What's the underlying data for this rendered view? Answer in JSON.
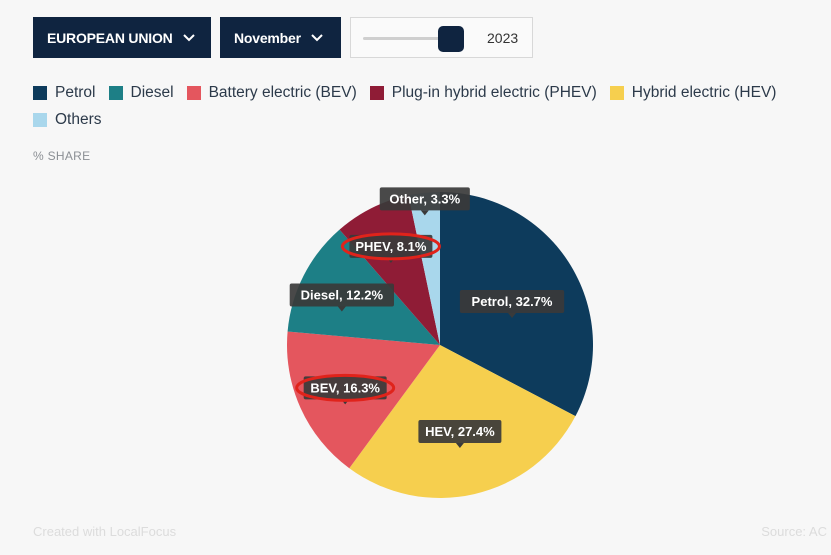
{
  "controls": {
    "region": "EUROPEAN UNION",
    "month": "November",
    "year": "2023",
    "year_fraction": 0.88
  },
  "legend": [
    {
      "label": "Petrol",
      "color": "#0d3b5c"
    },
    {
      "label": "Diesel",
      "color": "#1d7f86"
    },
    {
      "label": "Battery electric (BEV)",
      "color": "#e4565e"
    },
    {
      "label": "Plug-in hybrid electric (PHEV)",
      "color": "#8f1c36"
    },
    {
      "label": "Hybrid electric (HEV)",
      "color": "#f6cf4e"
    },
    {
      "label": "Others",
      "color": "#a9d7ec"
    }
  ],
  "share_label": "% SHARE",
  "chart_data": {
    "type": "pie",
    "slices": [
      {
        "name": "Petrol",
        "value": 32.7,
        "label": "Petrol, 32.7%",
        "color": "#0d3b5c"
      },
      {
        "name": "HEV",
        "value": 27.4,
        "label": "HEV, 27.4%",
        "color": "#f6cf4e"
      },
      {
        "name": "BEV",
        "value": 16.3,
        "label": "BEV, 16.3%",
        "color": "#e4565e",
        "highlighted": true
      },
      {
        "name": "Diesel",
        "value": 12.2,
        "label": "Diesel, 12.2%",
        "color": "#1d7f86"
      },
      {
        "name": "PHEV",
        "value": 8.1,
        "label": "PHEV, 8.1%",
        "color": "#8f1c36",
        "highlighted": true
      },
      {
        "name": "Other",
        "value": 3.3,
        "label": "Other, 3.3%",
        "color": "#a9d7ec"
      }
    ]
  },
  "footer": {
    "credit": "Created with LocalFocus",
    "source": "Source: AC"
  }
}
